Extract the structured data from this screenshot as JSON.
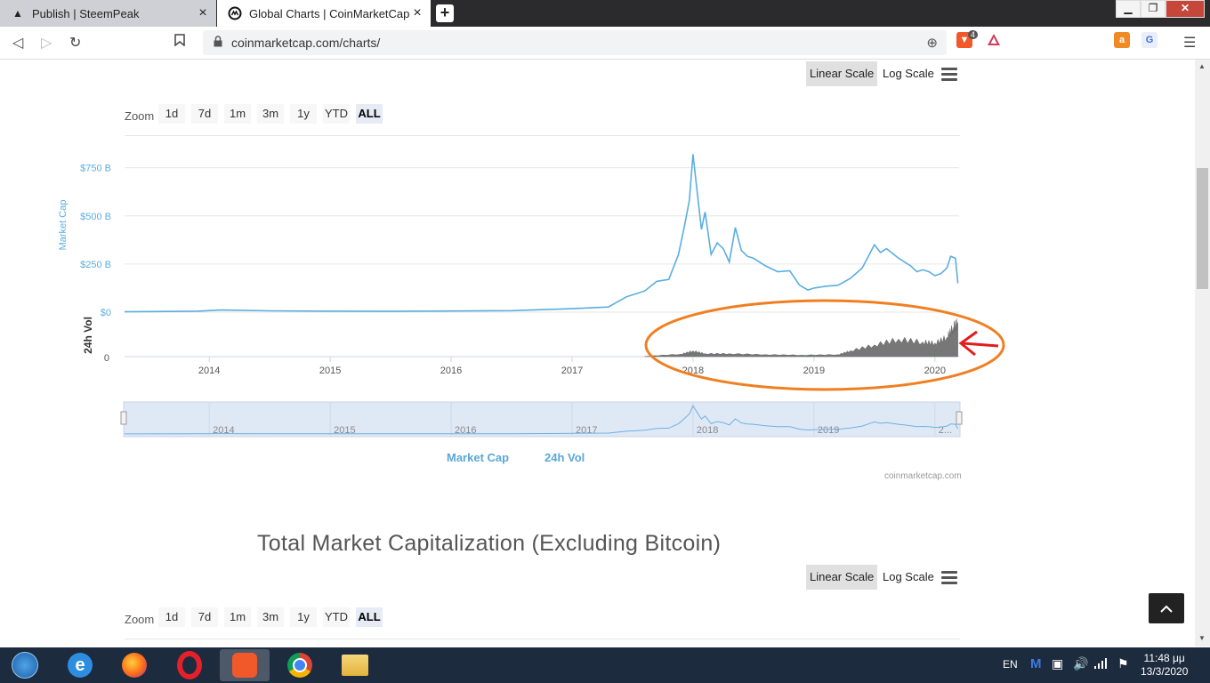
{
  "browser": {
    "tabs": [
      {
        "title": "Publish | SteemPeak",
        "icon": "steempeak-icon"
      },
      {
        "title": "Global Charts | CoinMarketCap",
        "icon": "coinmarketcap-icon"
      }
    ],
    "url": "coinmarketcap.com/charts/",
    "brave_badge": "4"
  },
  "chart1": {
    "scale_buttons": {
      "linear": "Linear Scale",
      "log": "Log Scale"
    },
    "zoom": {
      "label": "Zoom",
      "options": [
        "1d",
        "7d",
        "1m",
        "3m",
        "1y",
        "YTD",
        "ALL"
      ],
      "selected": "ALL"
    },
    "credit": "coinmarketcap.com",
    "legend": [
      "Market Cap",
      "24h Vol"
    ]
  },
  "chart2": {
    "title": "Total Market Capitalization (Excluding Bitcoin)",
    "scale_buttons": {
      "linear": "Linear Scale",
      "log": "Log Scale"
    },
    "zoom": {
      "label": "Zoom",
      "options": [
        "1d",
        "7d",
        "1m",
        "3m",
        "1y",
        "YTD",
        "ALL"
      ],
      "selected": "ALL"
    }
  },
  "chart_data": {
    "type": "line",
    "ylabel": "Market Cap",
    "ylabel2": "24h Vol",
    "yticks": [
      "$0",
      "$250 B",
      "$500 B",
      "$750 B"
    ],
    "vol_ticks": [
      "0"
    ],
    "xticks": [
      "2014",
      "2015",
      "2016",
      "2017",
      "2018",
      "2019",
      "2020"
    ],
    "navigator_ticks": [
      "2014",
      "2015",
      "2016",
      "2017",
      "2018",
      "2019",
      "2..."
    ],
    "series": [
      {
        "name": "Market Cap",
        "color": "#5aaee0",
        "x": [
          2013.3,
          2013.9,
          2014.1,
          2014.5,
          2015.0,
          2015.5,
          2016.0,
          2016.5,
          2017.0,
          2017.3,
          2017.45,
          2017.6,
          2017.7,
          2017.8,
          2017.88,
          2017.93,
          2017.97,
          2018.0,
          2018.03,
          2018.07,
          2018.1,
          2018.15,
          2018.2,
          2018.25,
          2018.3,
          2018.35,
          2018.4,
          2018.45,
          2018.5,
          2018.6,
          2018.7,
          2018.8,
          2018.88,
          2018.95,
          2019.0,
          2019.1,
          2019.2,
          2019.3,
          2019.4,
          2019.45,
          2019.5,
          2019.55,
          2019.6,
          2019.7,
          2019.8,
          2019.85,
          2019.9,
          2019.95,
          2020.0,
          2020.05,
          2020.1,
          2020.13,
          2020.17,
          2020.19
        ],
        "values": [
          2,
          5,
          11,
          7,
          5,
          4,
          6,
          8,
          18,
          27,
          80,
          110,
          160,
          170,
          300,
          450,
          580,
          820,
          650,
          430,
          520,
          300,
          360,
          330,
          260,
          440,
          320,
          290,
          280,
          240,
          210,
          215,
          140,
          115,
          125,
          135,
          140,
          175,
          230,
          290,
          350,
          310,
          330,
          280,
          240,
          210,
          220,
          210,
          190,
          200,
          230,
          290,
          280,
          150
        ]
      },
      {
        "name": "24h Vol",
        "color": "#7a7a7a",
        "x": [
          2017.6,
          2017.9,
          2018.0,
          2018.1,
          2018.3,
          2018.6,
          2018.9,
          2019.2,
          2019.3,
          2019.5,
          2019.7,
          2019.9,
          2020.0,
          2020.1,
          2020.15,
          2020.19
        ],
        "values": [
          0.3,
          2.5,
          6,
          3,
          3,
          2,
          1.5,
          2,
          6,
          12,
          18,
          15,
          14,
          20,
          30,
          35
        ]
      }
    ],
    "xlim": [
      2013.3,
      2020.2
    ],
    "ylim": [
      0,
      850
    ],
    "vol_ylim": [
      0,
      40
    ],
    "annotation": {
      "shape": "ellipse",
      "color": "#f07f22",
      "arrow_color": "#e31c1c"
    },
    "grid": true
  }
}
